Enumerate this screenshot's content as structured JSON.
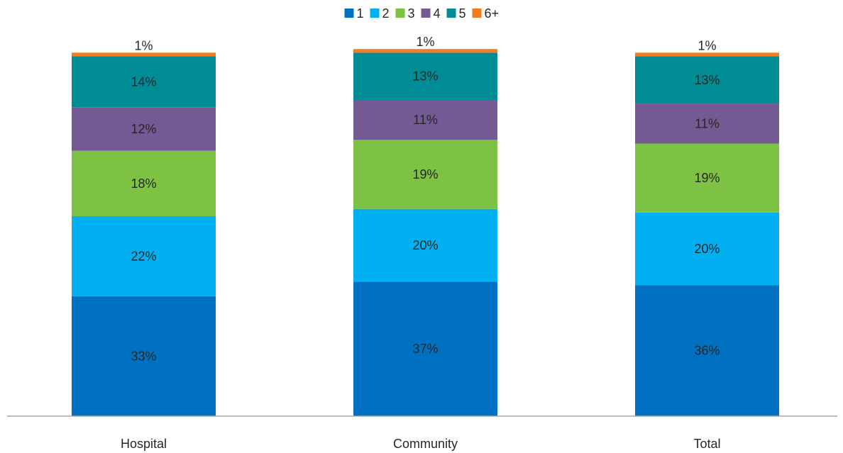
{
  "chart_data": {
    "type": "bar",
    "stacked": true,
    "title": "",
    "xlabel": "",
    "ylabel": "",
    "ylim": [
      0,
      100
    ],
    "grid": false,
    "legend_position": "top",
    "categories": [
      "Hospital",
      "Community",
      "Total"
    ],
    "series": [
      {
        "name": "1",
        "values": [
          33,
          37,
          36
        ],
        "labels": [
          "33%",
          "37%",
          "36%"
        ],
        "color": "#0070C0"
      },
      {
        "name": "2",
        "values": [
          22,
          20,
          20
        ],
        "labels": [
          "22%",
          "20%",
          "20%"
        ],
        "color": "#00B0F0"
      },
      {
        "name": "3",
        "values": [
          18,
          19,
          19
        ],
        "labels": [
          "18%",
          "19%",
          "19%"
        ],
        "color": "#7DC242"
      },
      {
        "name": "4",
        "values": [
          12,
          11,
          11
        ],
        "labels": [
          "12%",
          "11%",
          "11%"
        ],
        "color": "#735A92"
      },
      {
        "name": "5",
        "values": [
          14,
          13,
          13
        ],
        "labels": [
          "14%",
          "13%",
          "13%"
        ],
        "color": "#008C95"
      },
      {
        "name": "6+",
        "values": [
          1,
          1,
          1
        ],
        "labels": [
          "1%",
          "1%",
          "1%"
        ],
        "color": "#F47B20"
      }
    ]
  }
}
